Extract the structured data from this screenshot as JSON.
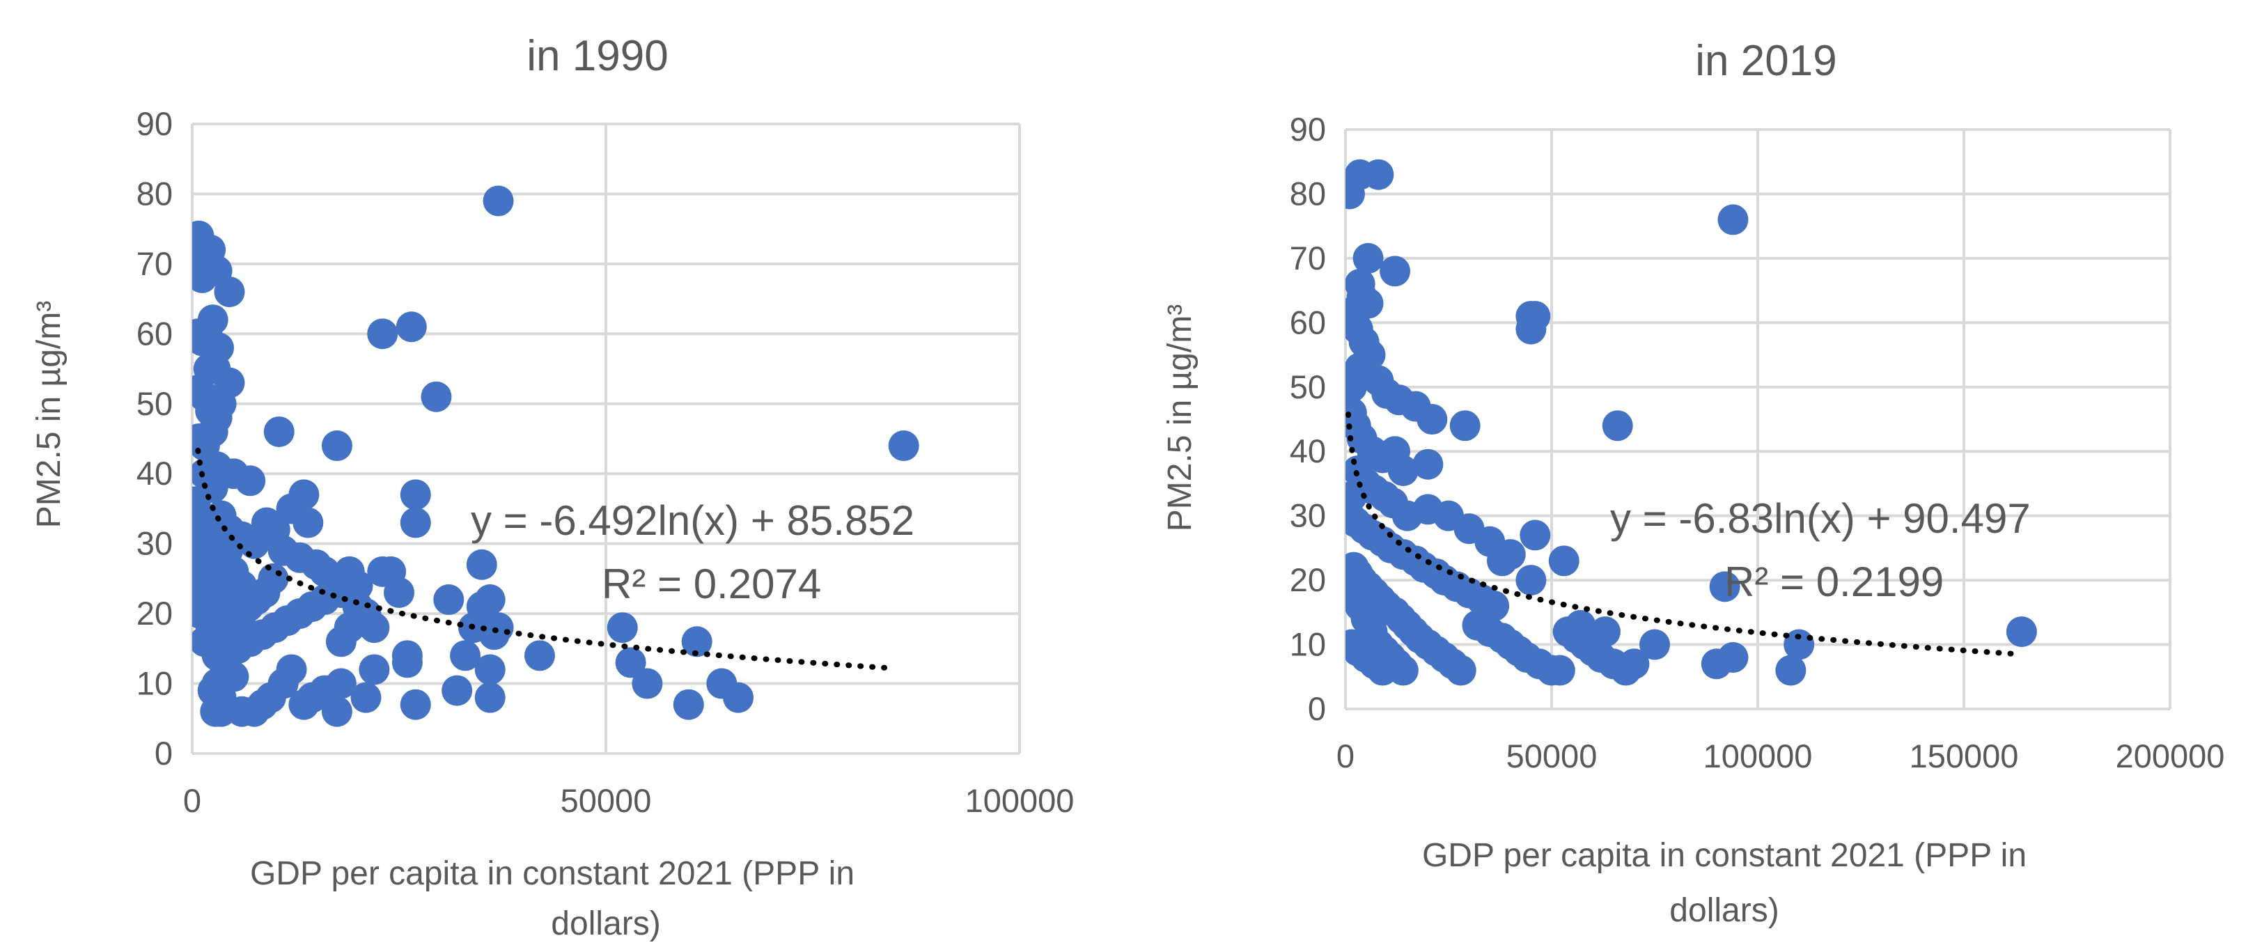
{
  "chart_data": [
    {
      "type": "scatter",
      "title": "in 1990",
      "xlabel": [
        "GDP per capita in constant 2021 (PPP in",
        "dollars)"
      ],
      "ylabel": "PM2.5 in µg/m³",
      "xlim": [
        0,
        100000
      ],
      "ylim": [
        0,
        90
      ],
      "x_ticks": [
        0,
        50000,
        100000
      ],
      "x_tick_labels": [
        "0",
        "50000",
        "100000"
      ],
      "y_ticks": [
        0,
        10,
        20,
        30,
        40,
        50,
        60,
        70,
        80,
        90
      ],
      "y_tick_labels": [
        "0",
        "10",
        "20",
        "30",
        "40",
        "50",
        "60",
        "70",
        "80",
        "90"
      ],
      "grid": true,
      "trendline": {
        "type": "logarithmic",
        "a": -6.492,
        "b": 85.852,
        "x_from": 700,
        "x_to": 85000,
        "equation": "y = -6.492ln(x) + 85.852",
        "r2_label": "R² = 0.2074"
      },
      "points": [
        [
          800,
          74
        ],
        [
          1500,
          71
        ],
        [
          2200,
          72
        ],
        [
          1200,
          68
        ],
        [
          3000,
          69
        ],
        [
          4500,
          66
        ],
        [
          2500,
          62
        ],
        [
          1800,
          60
        ],
        [
          700,
          60
        ],
        [
          1200,
          59
        ],
        [
          3200,
          58
        ],
        [
          2000,
          55
        ],
        [
          2800,
          55
        ],
        [
          4500,
          53
        ],
        [
          800,
          52
        ],
        [
          1500,
          51
        ],
        [
          2200,
          49
        ],
        [
          3000,
          48
        ],
        [
          3500,
          50
        ],
        [
          800,
          45
        ],
        [
          1500,
          44
        ],
        [
          2500,
          46
        ],
        [
          1500,
          40
        ],
        [
          3000,
          41
        ],
        [
          2500,
          38
        ],
        [
          5000,
          40
        ],
        [
          7000,
          39
        ],
        [
          9000,
          33
        ],
        [
          400,
          36
        ],
        [
          600,
          34
        ],
        [
          1500,
          33
        ],
        [
          2000,
          31
        ],
        [
          500,
          30
        ],
        [
          1000,
          28
        ],
        [
          2500,
          30
        ],
        [
          3500,
          34
        ],
        [
          4500,
          32
        ],
        [
          6000,
          31
        ],
        [
          7500,
          30
        ],
        [
          10000,
          32
        ],
        [
          12000,
          35
        ],
        [
          13500,
          37
        ],
        [
          14000,
          33
        ],
        [
          11000,
          29
        ],
        [
          13000,
          28
        ],
        [
          15000,
          27
        ],
        [
          16000,
          26
        ],
        [
          17000,
          25
        ],
        [
          18000,
          23
        ],
        [
          19000,
          26
        ],
        [
          20000,
          24
        ],
        [
          10500,
          46
        ],
        [
          17500,
          44
        ],
        [
          16000,
          22
        ],
        [
          14500,
          21
        ],
        [
          13000,
          20
        ],
        [
          11500,
          19
        ],
        [
          10000,
          18
        ],
        [
          8500,
          17
        ],
        [
          7000,
          16
        ],
        [
          5500,
          15
        ],
        [
          4000,
          17
        ],
        [
          2500,
          18
        ],
        [
          1500,
          16
        ],
        [
          600,
          26
        ],
        [
          900,
          24
        ],
        [
          1800,
          23
        ],
        [
          2800,
          22
        ],
        [
          3800,
          21
        ],
        [
          4800,
          20
        ],
        [
          5800,
          19
        ],
        [
          6800,
          21
        ],
        [
          7800,
          22
        ],
        [
          8800,
          23
        ],
        [
          9800,
          25
        ],
        [
          1000,
          20
        ],
        [
          2000,
          19
        ],
        [
          3000,
          25
        ],
        [
          4000,
          27
        ],
        [
          5000,
          26
        ],
        [
          6000,
          24
        ],
        [
          500,
          22
        ],
        [
          1400,
          25
        ],
        [
          2300,
          27
        ],
        [
          3300,
          28
        ],
        [
          4300,
          29
        ],
        [
          3000,
          14
        ],
        [
          4000,
          12
        ],
        [
          5000,
          11
        ],
        [
          3000,
          10
        ],
        [
          2500,
          9
        ],
        [
          3500,
          8
        ],
        [
          2800,
          6
        ],
        [
          3500,
          6
        ],
        [
          6000,
          6
        ],
        [
          7500,
          6
        ],
        [
          8500,
          7
        ],
        [
          9500,
          8
        ],
        [
          11000,
          10
        ],
        [
          12000,
          12
        ],
        [
          13500,
          7
        ],
        [
          14500,
          8
        ],
        [
          16000,
          9
        ],
        [
          17500,
          6
        ],
        [
          18000,
          10
        ],
        [
          21000,
          8
        ],
        [
          22000,
          12
        ],
        [
          23000,
          26
        ],
        [
          24000,
          26
        ],
        [
          25000,
          23
        ],
        [
          26000,
          14
        ],
        [
          27000,
          7
        ],
        [
          22000,
          18
        ],
        [
          21000,
          20
        ],
        [
          20000,
          21
        ],
        [
          19000,
          18
        ],
        [
          18000,
          16
        ],
        [
          23000,
          60
        ],
        [
          26500,
          61
        ],
        [
          29500,
          51
        ],
        [
          27000,
          37
        ],
        [
          27000,
          33
        ],
        [
          26000,
          13
        ],
        [
          31000,
          22
        ],
        [
          32000,
          9
        ],
        [
          33000,
          14
        ],
        [
          34000,
          18
        ],
        [
          35000,
          21
        ],
        [
          36000,
          22
        ],
        [
          36500,
          17
        ],
        [
          37000,
          18
        ],
        [
          36000,
          12
        ],
        [
          36000,
          8
        ],
        [
          35000,
          27
        ],
        [
          37000,
          79
        ],
        [
          42000,
          14
        ],
        [
          52000,
          18
        ],
        [
          53000,
          13
        ],
        [
          55000,
          10
        ],
        [
          60000,
          7
        ],
        [
          61000,
          16
        ],
        [
          64000,
          10
        ],
        [
          66000,
          8
        ],
        [
          86000,
          44
        ]
      ]
    },
    {
      "type": "scatter",
      "title": "in 2019",
      "xlabel": [
        "GDP per capita in constant 2021 (PPP in",
        "dollars)"
      ],
      "ylabel": "PM2.5 in µg/m³",
      "xlim": [
        0,
        200000
      ],
      "ylim": [
        0,
        90
      ],
      "x_ticks": [
        0,
        50000,
        100000,
        150000,
        200000
      ],
      "x_tick_labels": [
        "0",
        "50000",
        "100000",
        "150000",
        "200000"
      ],
      "y_ticks": [
        0,
        10,
        20,
        30,
        40,
        50,
        60,
        70,
        80,
        90
      ],
      "y_tick_labels": [
        "0",
        "10",
        "20",
        "30",
        "40",
        "50",
        "60",
        "70",
        "80",
        "90"
      ],
      "grid": true,
      "trendline": {
        "type": "logarithmic",
        "a": -6.83,
        "b": 90.497,
        "x_from": 700,
        "x_to": 163000,
        "equation": "y = -6.83ln(x) + 90.497",
        "r2_label": "R² = 0.2199"
      },
      "points": [
        [
          1000,
          80
        ],
        [
          3500,
          83
        ],
        [
          8000,
          83
        ],
        [
          5500,
          70
        ],
        [
          12000,
          68
        ],
        [
          3500,
          66
        ],
        [
          4000,
          64
        ],
        [
          5500,
          63
        ],
        [
          2500,
          62
        ],
        [
          2000,
          60
        ],
        [
          3000,
          59
        ],
        [
          4500,
          57
        ],
        [
          6000,
          55
        ],
        [
          3500,
          53
        ],
        [
          5500,
          52
        ],
        [
          8000,
          51
        ],
        [
          10000,
          49
        ],
        [
          13000,
          48
        ],
        [
          17000,
          47
        ],
        [
          21000,
          45
        ],
        [
          29000,
          44
        ],
        [
          1500,
          50
        ],
        [
          1500,
          46
        ],
        [
          2500,
          44
        ],
        [
          4000,
          42
        ],
        [
          6500,
          40
        ],
        [
          9000,
          39
        ],
        [
          12000,
          40
        ],
        [
          14000,
          37
        ],
        [
          20000,
          38
        ],
        [
          3000,
          37
        ],
        [
          5000,
          35
        ],
        [
          7000,
          34
        ],
        [
          9500,
          33
        ],
        [
          11500,
          32
        ],
        [
          15000,
          30
        ],
        [
          20000,
          31
        ],
        [
          25000,
          30
        ],
        [
          30000,
          28
        ],
        [
          35000,
          26
        ],
        [
          40000,
          24
        ],
        [
          1500,
          33
        ],
        [
          1000,
          30
        ],
        [
          2500,
          29
        ],
        [
          4500,
          28
        ],
        [
          6500,
          27
        ],
        [
          9000,
          26
        ],
        [
          11000,
          25
        ],
        [
          14000,
          24
        ],
        [
          17000,
          23
        ],
        [
          19000,
          22
        ],
        [
          22000,
          21
        ],
        [
          24000,
          20
        ],
        [
          27000,
          19
        ],
        [
          30000,
          18
        ],
        [
          33000,
          17
        ],
        [
          36000,
          16
        ],
        [
          38000,
          23
        ],
        [
          45000,
          20
        ],
        [
          46000,
          27
        ],
        [
          53000,
          23
        ],
        [
          2000,
          22
        ],
        [
          3000,
          21
        ],
        [
          4000,
          20
        ],
        [
          5500,
          19
        ],
        [
          7000,
          18
        ],
        [
          8500,
          17
        ],
        [
          10000,
          16
        ],
        [
          12000,
          15
        ],
        [
          13500,
          14
        ],
        [
          15000,
          13
        ],
        [
          16500,
          12
        ],
        [
          18000,
          11
        ],
        [
          20000,
          10
        ],
        [
          22000,
          9
        ],
        [
          24000,
          8
        ],
        [
          26000,
          7
        ],
        [
          28000,
          6
        ],
        [
          1500,
          19
        ],
        [
          2500,
          17
        ],
        [
          3500,
          16
        ],
        [
          5000,
          14
        ],
        [
          6500,
          12
        ],
        [
          8000,
          10
        ],
        [
          9500,
          9
        ],
        [
          11000,
          8
        ],
        [
          12500,
          7
        ],
        [
          14000,
          6
        ],
        [
          1500,
          10
        ],
        [
          3000,
          9
        ],
        [
          5000,
          8
        ],
        [
          7000,
          7
        ],
        [
          9000,
          6
        ],
        [
          32000,
          13
        ],
        [
          35000,
          12
        ],
        [
          38000,
          11
        ],
        [
          40000,
          10
        ],
        [
          42000,
          9
        ],
        [
          44000,
          8
        ],
        [
          47000,
          7
        ],
        [
          50000,
          6
        ],
        [
          52000,
          6
        ],
        [
          54000,
          12
        ],
        [
          56000,
          11
        ],
        [
          58000,
          10
        ],
        [
          60000,
          9
        ],
        [
          62000,
          8
        ],
        [
          65000,
          7
        ],
        [
          68000,
          6
        ],
        [
          70000,
          7
        ],
        [
          75000,
          10
        ],
        [
          57000,
          13
        ],
        [
          61000,
          11
        ],
        [
          63000,
          12
        ],
        [
          45000,
          61
        ],
        [
          46000,
          61
        ],
        [
          45000,
          59
        ],
        [
          66000,
          44
        ],
        [
          94000,
          76
        ],
        [
          92000,
          19
        ],
        [
          90000,
          7
        ],
        [
          94000,
          8
        ],
        [
          108000,
          6
        ],
        [
          110000,
          10
        ],
        [
          164000,
          12
        ]
      ]
    }
  ]
}
